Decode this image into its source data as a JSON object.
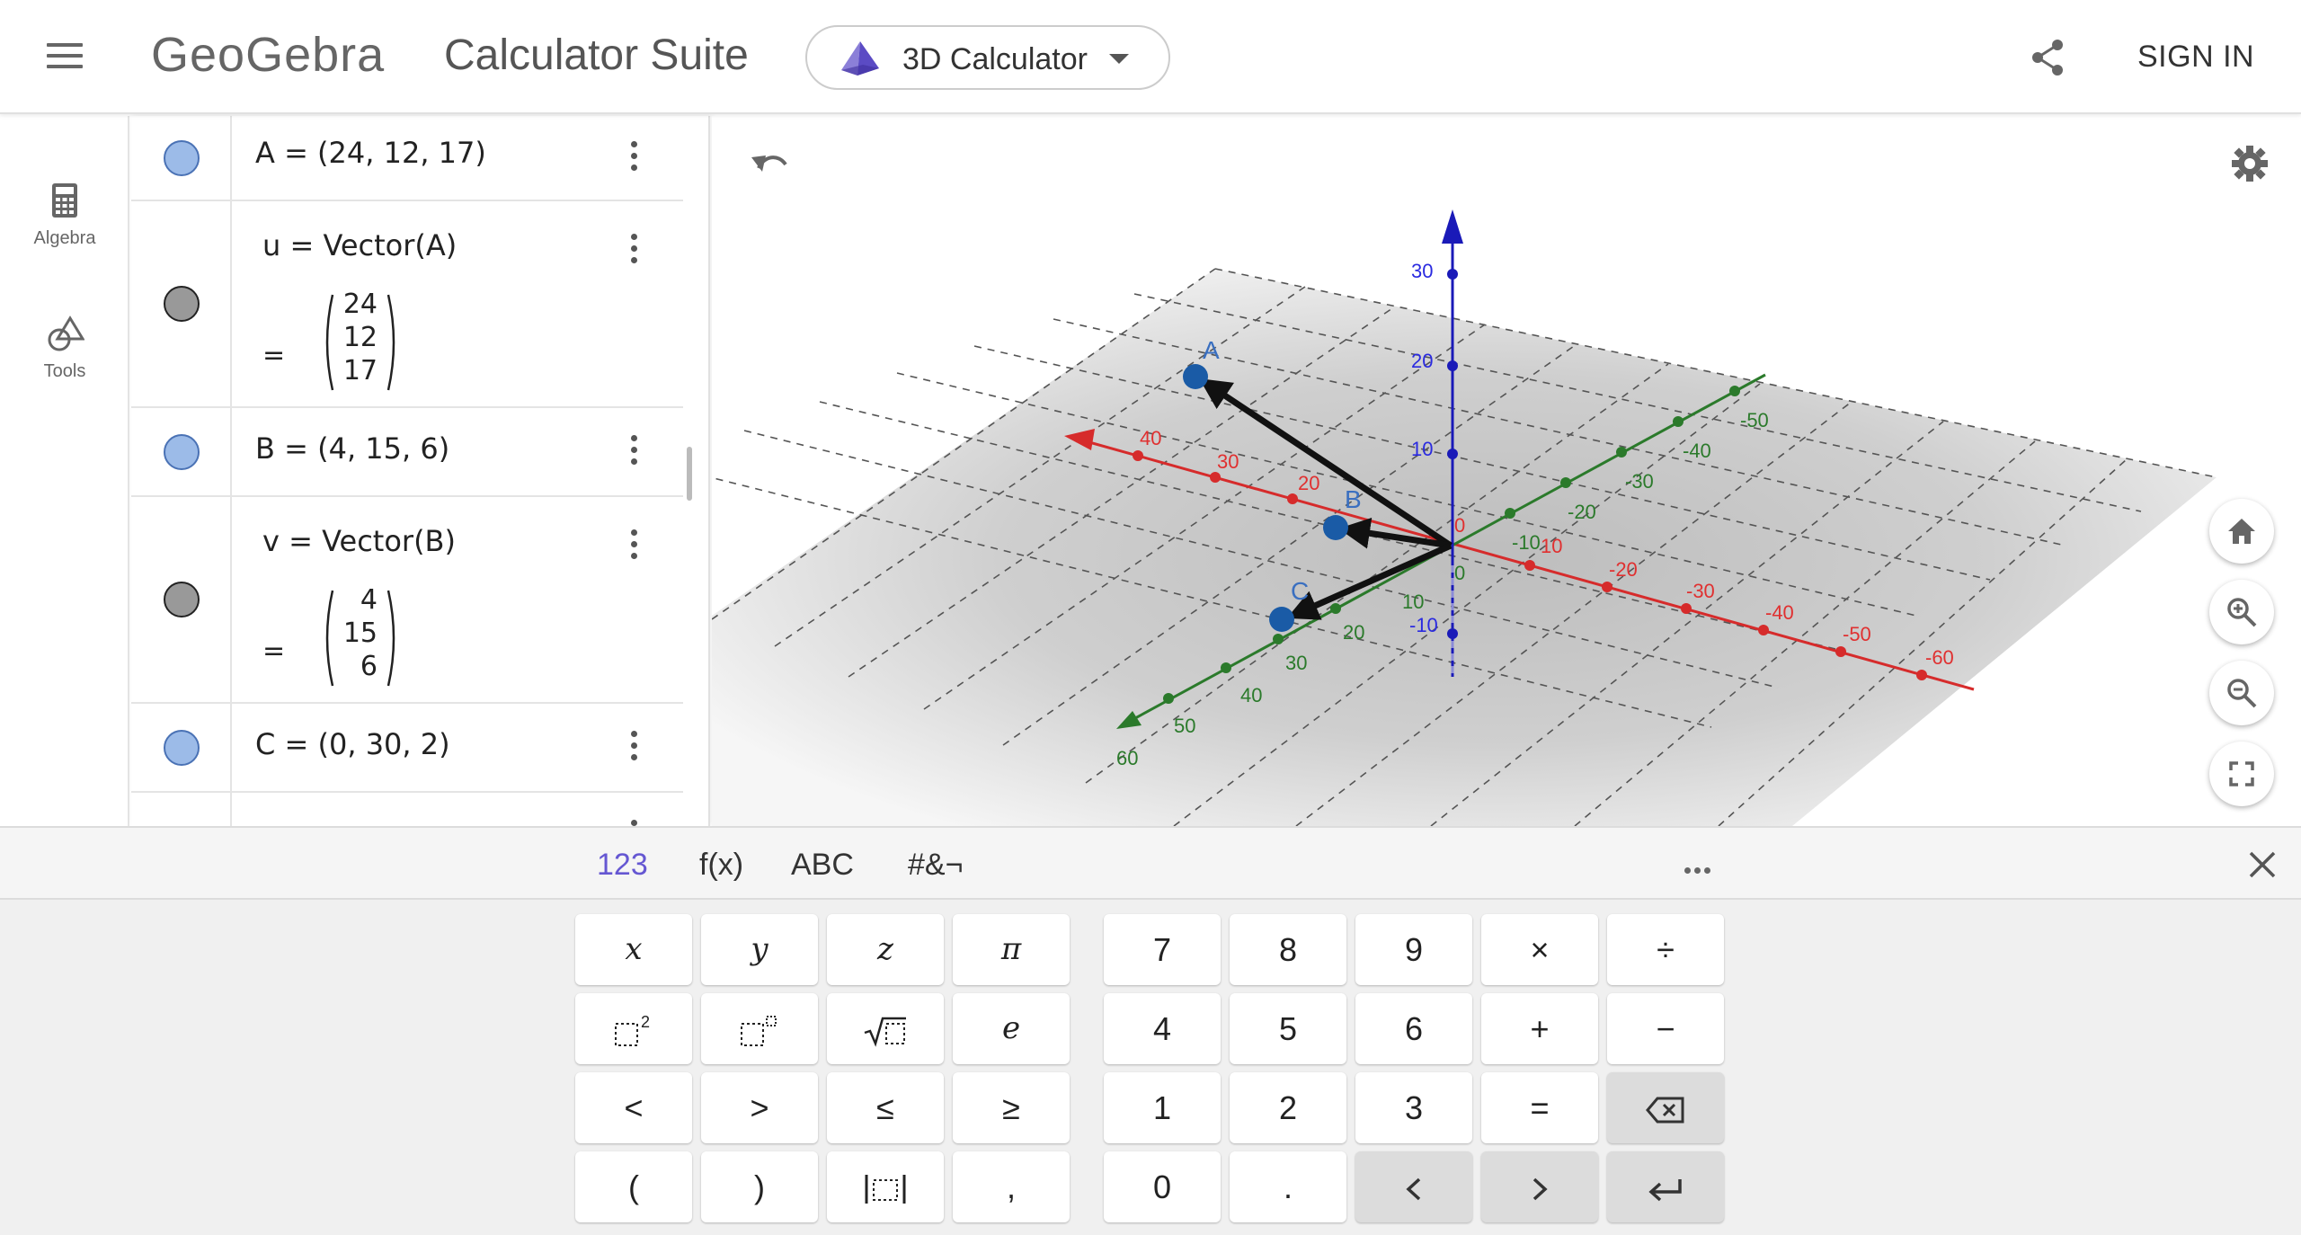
{
  "header": {
    "logo": "GeoGebra",
    "suite_title": "Calculator Suite",
    "app_selector": "3D Calculator",
    "sign_in": "SIGN IN"
  },
  "rail": {
    "items": [
      {
        "label": "Algebra",
        "icon": "calculator-icon"
      },
      {
        "label": "Tools",
        "icon": "tools-icon"
      }
    ]
  },
  "algebra": {
    "rows": [
      {
        "expr": "A = (24, 12, 17)"
      },
      {
        "expr": "u = Vector(A)",
        "vector": [
          "24",
          "12",
          "17"
        ]
      },
      {
        "expr": "B = (4, 15, 6)"
      },
      {
        "expr": "v = Vector(B)",
        "vector": [
          "4",
          "15",
          "6"
        ]
      },
      {
        "expr": "C = (0, 30, 2)"
      }
    ],
    "eq_sign": "="
  },
  "graphics": {
    "x_axis_ticks": [
      "40",
      "30",
      "20",
      "10",
      "10",
      "-20",
      "-30",
      "-40",
      "-50",
      "-60"
    ],
    "x_axis_labels": {
      "pos": [
        "40",
        "30",
        "20"
      ],
      "neg": [
        "10",
        "-20",
        "-30",
        "-40",
        "-50",
        "-60"
      ]
    },
    "y_axis_labels": {
      "pos": [
        "10",
        "20",
        "30",
        "40",
        "50",
        "60"
      ],
      "neg": [
        "-10",
        "-20",
        "-30",
        "-40",
        "-50"
      ]
    },
    "z_axis_labels": [
      "30",
      "20",
      "10",
      "-10"
    ],
    "origin_label": "0",
    "origin_label_2": "0",
    "x_neg_near": "-10",
    "points": [
      {
        "name": "A"
      },
      {
        "name": "B"
      },
      {
        "name": "C"
      }
    ],
    "colors": {
      "x_axis": "#d62b2b",
      "y_axis": "#2b7a2b",
      "z_axis": "#1a1ab8",
      "point": "#1a5ba6",
      "point_label": "#3a6fc0"
    }
  },
  "keyboard": {
    "tabs": [
      "123",
      "f(x)",
      "ABC",
      "#&¬"
    ],
    "active_tab": "123",
    "left_keys": [
      "x",
      "y",
      "z",
      "π",
      "□²",
      "□ⁿ",
      "√□",
      "e",
      "<",
      ">",
      "≤",
      "≥",
      "(",
      ")",
      "|□|",
      ","
    ],
    "right_keys": [
      "7",
      "8",
      "9",
      "×",
      "÷",
      "4",
      "5",
      "6",
      "+",
      "−",
      "1",
      "2",
      "3",
      "=",
      "",
      "0",
      ".",
      "",
      "",
      ""
    ]
  }
}
